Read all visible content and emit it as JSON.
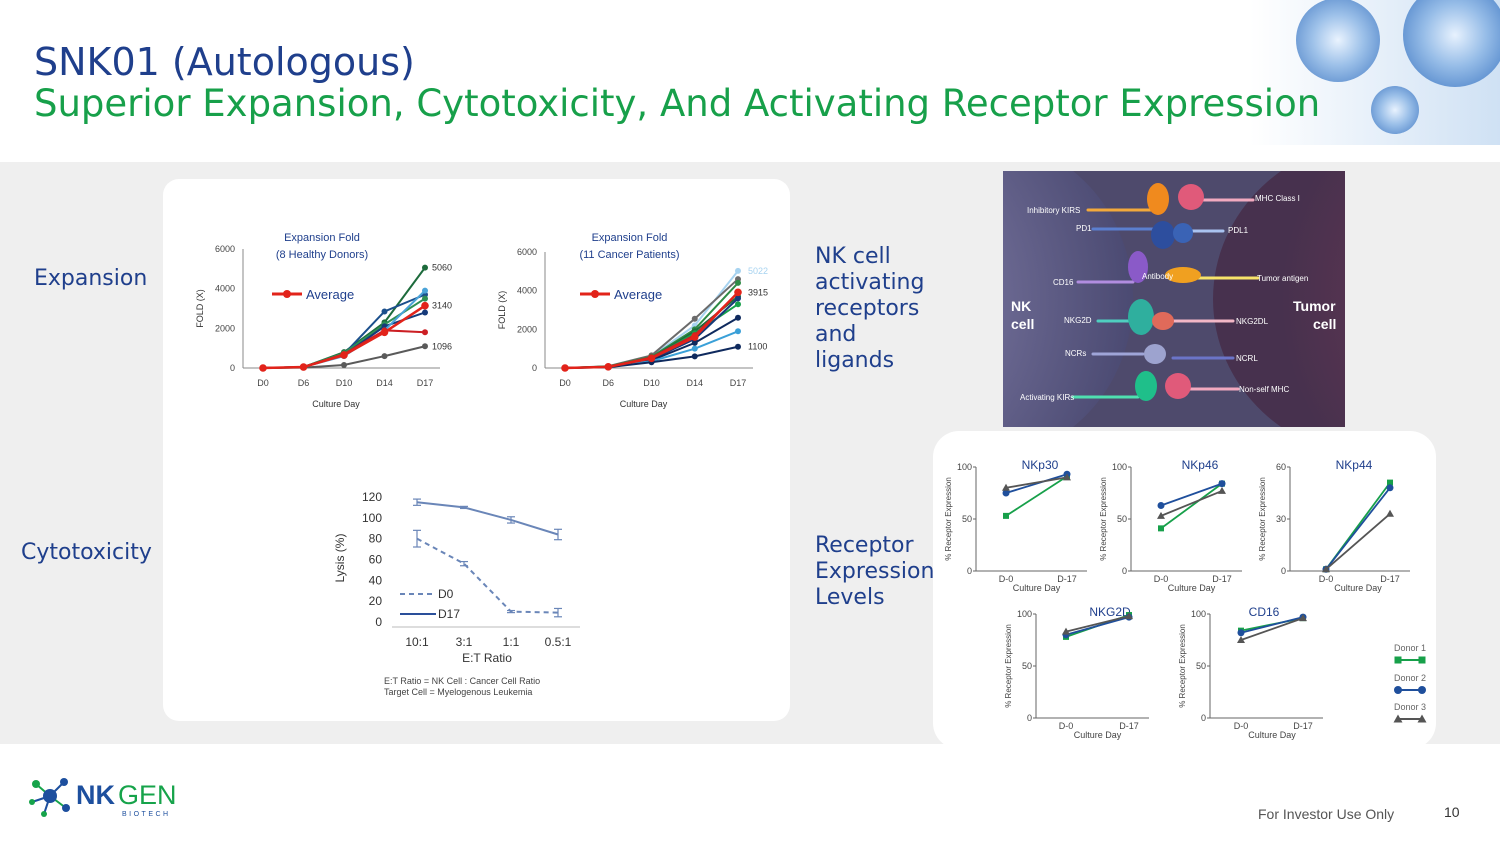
{
  "header": {
    "title": "SNK01 (Autologous)",
    "subtitle": "Superior Expansion, Cytotoxicity, And Activating Receptor Expression"
  },
  "sections": {
    "expansion": "Expansion",
    "cytotoxicity": "Cytotoxicity",
    "nk_receptors": [
      "NK cell",
      "activating",
      "receptors",
      "and",
      "ligands"
    ],
    "receptor_levels": [
      "Receptor",
      "Expression",
      "Levels"
    ]
  },
  "chart_data": [
    {
      "type": "line",
      "title": [
        "Expansion Fold",
        "(8 Healthy Donors)"
      ],
      "xlabel": "Culture Day",
      "ylabel": "FOLD (X)",
      "categories": [
        "D0",
        "D6",
        "D10",
        "D14",
        "D17"
      ],
      "ylim": [
        0,
        6000
      ],
      "yticks": [
        "0",
        "2000",
        "4000",
        "6000"
      ],
      "legend": "Average",
      "end_labels": [
        "5060",
        "3140",
        "1096"
      ],
      "series": [
        {
          "color": "#1d6b3c",
          "values": [
            0,
            50,
            800,
            2300,
            5060
          ]
        },
        {
          "color": "#1b4f8c",
          "values": [
            0,
            50,
            700,
            2850,
            3700
          ]
        },
        {
          "color": "#2f8f55",
          "values": [
            0,
            50,
            750,
            2200,
            3500
          ]
        },
        {
          "color": "#163a7a",
          "values": [
            0,
            50,
            650,
            2100,
            2800
          ]
        },
        {
          "color": "#4aa3d8",
          "values": [
            0,
            50,
            600,
            1900,
            3900
          ]
        },
        {
          "color": "#cc1f24",
          "values": [
            0,
            40,
            700,
            1900,
            1800
          ]
        },
        {
          "color": "#5a5a5a",
          "values": [
            0,
            20,
            150,
            600,
            1096
          ]
        },
        {
          "color": "#e2231a",
          "values": [
            0,
            50,
            650,
            1800,
            3140
          ],
          "average": true
        }
      ]
    },
    {
      "type": "line",
      "title": [
        "Expansion Fold",
        "(11 Cancer Patients)"
      ],
      "xlabel": "Culture Day",
      "ylabel": "FOLD (X)",
      "categories": [
        "D0",
        "D6",
        "D10",
        "D14",
        "D17"
      ],
      "ylim": [
        0,
        6000
      ],
      "yticks": [
        "0",
        "2000",
        "4000",
        "6000"
      ],
      "legend": "Average",
      "end_labels": [
        "5022",
        "3915",
        "1100"
      ],
      "end_label_colors": [
        "#a7d3f0",
        "#333333",
        "#333333"
      ],
      "series": [
        {
          "color": "#a7d3f0",
          "values": [
            0,
            80,
            600,
            2200,
            5022
          ]
        },
        {
          "color": "#6b6b6b",
          "values": [
            0,
            90,
            650,
            2550,
            4600
          ]
        },
        {
          "color": "#2e8b45",
          "values": [
            0,
            80,
            580,
            2000,
            4400
          ]
        },
        {
          "color": "#1d6b3c",
          "values": [
            0,
            70,
            520,
            1900,
            3700
          ]
        },
        {
          "color": "#17a04a",
          "values": [
            0,
            70,
            500,
            1800,
            3300
          ]
        },
        {
          "color": "#163a7a",
          "values": [
            0,
            60,
            450,
            1500,
            3600
          ]
        },
        {
          "color": "#0f2a5e",
          "values": [
            0,
            60,
            400,
            1300,
            2600
          ]
        },
        {
          "color": "#3aa0d8",
          "values": [
            0,
            50,
            350,
            1000,
            1900
          ]
        },
        {
          "color": "#0f2a5e",
          "values": [
            0,
            40,
            300,
            600,
            1100
          ]
        },
        {
          "color": "#cc1f24",
          "values": [
            0,
            60,
            550,
            1700,
            3900
          ]
        },
        {
          "color": "#e2231a",
          "values": [
            0,
            60,
            500,
            1600,
            3915
          ],
          "average": true
        }
      ]
    },
    {
      "type": "line",
      "xlabel": "E:T Ratio",
      "ylabel": "Lysis (%)",
      "categories": [
        "10:1",
        "3:1",
        "1:1",
        "0.5:1"
      ],
      "ylim": [
        0,
        120
      ],
      "yticks": [
        "0",
        "20",
        "40",
        "60",
        "80",
        "100",
        "120"
      ],
      "series": [
        {
          "name": "D0",
          "color": "#6a86b8",
          "dashed": true,
          "values": [
            80,
            56,
            10,
            9
          ],
          "errors": [
            8,
            2,
            1,
            4
          ]
        },
        {
          "name": "D17",
          "color": "#6a86b8",
          "values": [
            115,
            110,
            98,
            84
          ],
          "errors": [
            3,
            1,
            3,
            5
          ]
        }
      ],
      "notes": [
        "E:T Ratio = NK Cell : Cancer Cell Ratio",
        "Target Cell = Myelogenous Leukemia"
      ]
    },
    {
      "type": "line",
      "title": "NKp30",
      "xlabel": "Culture Day",
      "ylabel": "% Receptor Expression",
      "categories": [
        "D-0",
        "D-17"
      ],
      "ylim": [
        0,
        100
      ],
      "yticks": [
        "0",
        "50",
        "100"
      ],
      "series": [
        {
          "color": "#17a04a",
          "marker": "square",
          "values": [
            53,
            91
          ]
        },
        {
          "color": "#1f4f9c",
          "marker": "circle",
          "values": [
            75,
            93
          ]
        },
        {
          "color": "#555555",
          "marker": "triangle",
          "values": [
            80,
            90
          ]
        }
      ]
    },
    {
      "type": "line",
      "title": "NKp46",
      "xlabel": "Culture Day",
      "ylabel": "% Receptor Expression",
      "categories": [
        "D-0",
        "D-17"
      ],
      "ylim": [
        0,
        100
      ],
      "yticks": [
        "0",
        "50",
        "100"
      ],
      "series": [
        {
          "color": "#17a04a",
          "marker": "square",
          "values": [
            41,
            84
          ]
        },
        {
          "color": "#1f4f9c",
          "marker": "circle",
          "values": [
            63,
            84
          ]
        },
        {
          "color": "#555555",
          "marker": "triangle",
          "values": [
            53,
            77
          ]
        }
      ]
    },
    {
      "type": "line",
      "title": "NKp44",
      "xlabel": "Culture Day",
      "ylabel": "% Receptor Expression",
      "categories": [
        "D-0",
        "D-17"
      ],
      "ylim": [
        0,
        60
      ],
      "yticks": [
        "0",
        "30",
        "60"
      ],
      "series": [
        {
          "color": "#17a04a",
          "marker": "square",
          "values": [
            1,
            51
          ]
        },
        {
          "color": "#1f4f9c",
          "marker": "circle",
          "values": [
            1,
            48
          ]
        },
        {
          "color": "#555555",
          "marker": "triangle",
          "values": [
            1,
            33
          ]
        }
      ]
    },
    {
      "type": "line",
      "title": "NKG2D",
      "xlabel": "Culture Day",
      "ylabel": "% Receptor Expression",
      "categories": [
        "D-0",
        "D-17"
      ],
      "ylim": [
        0,
        100
      ],
      "yticks": [
        "0",
        "50",
        "100"
      ],
      "series": [
        {
          "color": "#17a04a",
          "marker": "square",
          "values": [
            78,
            99
          ]
        },
        {
          "color": "#1f4f9c",
          "marker": "circle",
          "values": [
            80,
            97
          ]
        },
        {
          "color": "#555555",
          "marker": "triangle",
          "values": [
            83,
            98
          ]
        }
      ]
    },
    {
      "type": "line",
      "title": "CD16",
      "xlabel": "Culture Day",
      "ylabel": "% Receptor Expression",
      "categories": [
        "D-0",
        "D-17"
      ],
      "ylim": [
        0,
        100
      ],
      "yticks": [
        "0",
        "50",
        "100"
      ],
      "series": [
        {
          "color": "#17a04a",
          "marker": "square",
          "values": [
            84,
            96
          ]
        },
        {
          "color": "#1f4f9c",
          "marker": "circle",
          "values": [
            82,
            97
          ]
        },
        {
          "color": "#555555",
          "marker": "triangle",
          "values": [
            75,
            96
          ]
        }
      ]
    }
  ],
  "receptor_legend": [
    {
      "name": "Donor 1",
      "color": "#17a04a",
      "marker": "square"
    },
    {
      "name": "Donor 2",
      "color": "#1f4f9c",
      "marker": "circle"
    },
    {
      "name": "Donor 3",
      "color": "#555555",
      "marker": "triangle"
    }
  ],
  "diagram": {
    "left_cell": [
      "NK",
      "cell"
    ],
    "right_cell": [
      "Tumor",
      "cell"
    ],
    "left_labels": [
      "Inhibitory KIRS",
      "PD1",
      "CD16",
      "NKG2D",
      "NCRs",
      "Activating KIRs"
    ],
    "right_labels": [
      "MHC Class I",
      "PDL1",
      "Tumor antigen",
      "NKG2DL",
      "NCRL",
      "Non-self MHC"
    ],
    "antibody": "Antibody"
  },
  "logo": {
    "name_part1": "NK",
    "name_part2": "GEN",
    "tagline": "BIOTECH"
  },
  "footer": {
    "note": "For Investor Use Only",
    "page": "10"
  }
}
